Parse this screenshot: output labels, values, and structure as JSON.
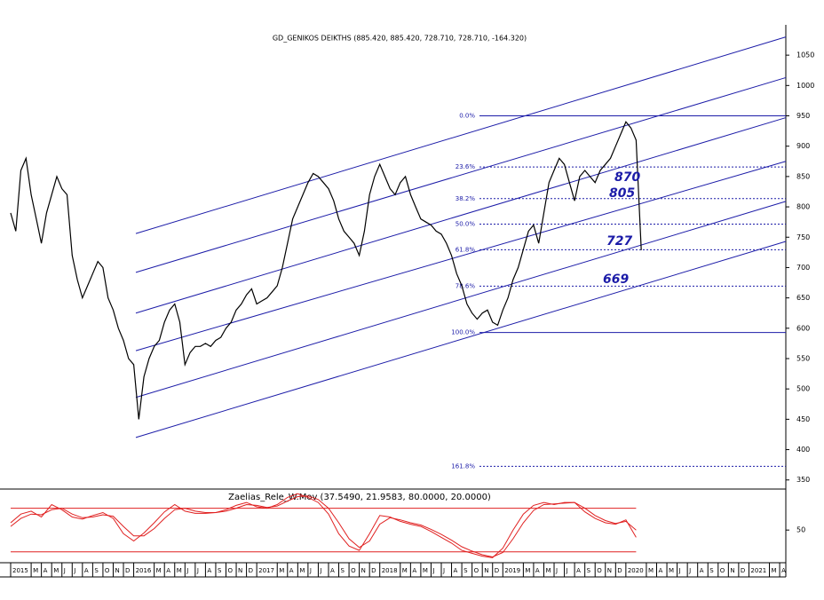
{
  "chart_data": [
    {
      "type": "line",
      "title": "GD_GENIKOS DEIKTHS (885.420, 885.420, 728.710, 728.710, -164.320)",
      "x": [
        0,
        0.5,
        1,
        1.5,
        2,
        2.5,
        3,
        3.5,
        4,
        4.5,
        5,
        5.5,
        6,
        6.5,
        7,
        7.5,
        8,
        8.5,
        9,
        9.5,
        10,
        10.5,
        11,
        11.5,
        12,
        12.5,
        13,
        13.5,
        14,
        14.5,
        15,
        15.5,
        16,
        16.5,
        17,
        17.5,
        18,
        18.5,
        19,
        19.5,
        20,
        20.5,
        21,
        21.5,
        22,
        22.5,
        23,
        23.5,
        24,
        24.5,
        25,
        25.5,
        26,
        26.5,
        27,
        27.5,
        28,
        28.5,
        29,
        29.5,
        30,
        30.5,
        31,
        31.5,
        32,
        32.5,
        33,
        33.5,
        34,
        34.5,
        35,
        35.5,
        36,
        36.5,
        37,
        37.5,
        38,
        38.5,
        39,
        39.5,
        40,
        40.5,
        41,
        41.5,
        42,
        42.5,
        43,
        43.5,
        44,
        44.5,
        45,
        45.5,
        46,
        46.5,
        47,
        47.5,
        48,
        48.5,
        49,
        49.5,
        50,
        50.5,
        51,
        51.5,
        52,
        52.5,
        53,
        53.5,
        54,
        54.5,
        55,
        55.5,
        56,
        56.5,
        57,
        57.5,
        58,
        58.5,
        59,
        59.5,
        60,
        60.5,
        61,
        61.5
      ],
      "series": [
        {
          "color": "#000000",
          "values": [
            790,
            760,
            860,
            880,
            820,
            780,
            740,
            790,
            820,
            850,
            830,
            820,
            720,
            680,
            650,
            670,
            690,
            710,
            700,
            650,
            630,
            600,
            580,
            550,
            540,
            450,
            520,
            550,
            570,
            580,
            610,
            630,
            640,
            610,
            540,
            560,
            570,
            570,
            575,
            570,
            580,
            585,
            600,
            610,
            630,
            640,
            655,
            665,
            640,
            645,
            650,
            660,
            670,
            700,
            740,
            780,
            800,
            820,
            840,
            855,
            850,
            840,
            830,
            810,
            780,
            760,
            750,
            740,
            720,
            760,
            820,
            850,
            870,
            850,
            830,
            820,
            840,
            850,
            820,
            800,
            780,
            775,
            770,
            760,
            755,
            740,
            720,
            690,
            670,
            640,
            625,
            615,
            625,
            630,
            610,
            605,
            630,
            650,
            680,
            700,
            730,
            760,
            770,
            740,
            790,
            840,
            860,
            880,
            870,
            840,
            810,
            850,
            860,
            850,
            840,
            860,
            870,
            880,
            900,
            920,
            940,
            930,
            910,
            728.71
          ]
        }
      ],
      "xlim": [
        0,
        75.6
      ],
      "ylim": [
        335,
        1097
      ],
      "yticks": [
        350,
        400,
        450,
        500,
        550,
        600,
        650,
        700,
        750,
        800,
        850,
        900,
        950,
        1000,
        1050
      ],
      "fib": {
        "values": [
          950,
          865.7,
          813.6,
          771.5,
          729.4,
          669.4,
          593,
          372.4
        ],
        "labels": [
          "0.0%",
          "23.6%",
          "38.2%",
          "50.0%",
          "61.8%",
          "78.6%",
          "100.0%",
          "161.8%"
        ],
        "styles": [
          "solid",
          "dashed",
          "dashed",
          "dashed",
          "dashed",
          "dashed",
          "solid",
          "dashed"
        ],
        "color": "#1c1ca8"
      },
      "channel": {
        "color": "#1c1ca8",
        "lines": [
          [
            420,
            743
          ],
          [
            486,
            809
          ],
          [
            563,
            875
          ],
          [
            625,
            947
          ],
          [
            692,
            1013
          ],
          [
            756,
            1080
          ]
        ]
      },
      "annotations": [
        "870",
        "805",
        "727",
        "669"
      ]
    },
    {
      "type": "oscillator",
      "title": "Zaelias_Rele_W.Mov (37.5490, 21.9583, 80.0000, 20.0000)",
      "x": [
        0,
        1,
        2,
        3,
        4,
        5,
        6,
        7,
        8,
        9,
        10,
        11,
        12,
        13,
        14,
        15,
        16,
        17,
        18,
        19,
        20,
        21,
        22,
        23,
        24,
        25,
        26,
        27,
        28,
        29,
        30,
        31,
        32,
        33,
        34,
        35,
        36,
        37,
        38,
        39,
        40,
        41,
        42,
        43,
        44,
        45,
        46,
        47,
        48,
        49,
        50,
        51,
        52,
        53,
        54,
        55,
        56,
        57,
        58,
        59,
        60,
        61
      ],
      "series": [
        {
          "color": "#e02020",
          "values": [
            60,
            72,
            76,
            68,
            85,
            78,
            68,
            65,
            70,
            74,
            66,
            45,
            35,
            46,
            60,
            75,
            85,
            76,
            73,
            73,
            74,
            78,
            84,
            88,
            82,
            80,
            85,
            95,
            100,
            95,
            88,
            72,
            45,
            28,
            22,
            45,
            70,
            68,
            62,
            58,
            55,
            48,
            40,
            32,
            22,
            18,
            14,
            12,
            25,
            50,
            72,
            84,
            88,
            85,
            88,
            88,
            75,
            66,
            60,
            58,
            64,
            40
          ]
        },
        {
          "color": "#e02020",
          "values": [
            55,
            66,
            72,
            71,
            78,
            80,
            72,
            67,
            68,
            71,
            69,
            55,
            42,
            42,
            52,
            66,
            78,
            80,
            76,
            74,
            74,
            76,
            80,
            85,
            84,
            81,
            83,
            90,
            96,
            97,
            92,
            80,
            60,
            38,
            26,
            35,
            58,
            67,
            64,
            60,
            57,
            51,
            44,
            36,
            27,
            21,
            16,
            13,
            19,
            38,
            60,
            77,
            85,
            86,
            87,
            88,
            80,
            70,
            63,
            59,
            62,
            50
          ]
        }
      ],
      "levels": [
        80,
        20
      ],
      "xlim": [
        0,
        75.6
      ],
      "ylim": [
        5,
        104
      ],
      "yticks": [
        50
      ],
      "xticks": [
        {
          "value": 0,
          "label": "2015"
        },
        {
          "value": 2,
          "label": "M"
        },
        {
          "value": 3,
          "label": "A"
        },
        {
          "value": 4,
          "label": "M"
        },
        {
          "value": 5,
          "label": "J"
        },
        {
          "value": 6,
          "label": "J"
        },
        {
          "value": 7,
          "label": "A"
        },
        {
          "value": 8,
          "label": "S"
        },
        {
          "value": 9,
          "label": "O"
        },
        {
          "value": 10,
          "label": "N"
        },
        {
          "value": 11,
          "label": "D"
        },
        {
          "value": 12,
          "label": "2016"
        },
        {
          "value": 14,
          "label": "M"
        },
        {
          "value": 15,
          "label": "A"
        },
        {
          "value": 16,
          "label": "M"
        },
        {
          "value": 17,
          "label": "J"
        },
        {
          "value": 18,
          "label": "J"
        },
        {
          "value": 19,
          "label": "A"
        },
        {
          "value": 20,
          "label": "S"
        },
        {
          "value": 21,
          "label": "O"
        },
        {
          "value": 22,
          "label": "N"
        },
        {
          "value": 23,
          "label": "D"
        },
        {
          "value": 24,
          "label": "2017"
        },
        {
          "value": 26,
          "label": "M"
        },
        {
          "value": 27,
          "label": "A"
        },
        {
          "value": 28,
          "label": "M"
        },
        {
          "value": 29,
          "label": "J"
        },
        {
          "value": 30,
          "label": "J"
        },
        {
          "value": 31,
          "label": "A"
        },
        {
          "value": 32,
          "label": "S"
        },
        {
          "value": 33,
          "label": "O"
        },
        {
          "value": 34,
          "label": "N"
        },
        {
          "value": 35,
          "label": "D"
        },
        {
          "value": 36,
          "label": "2018"
        },
        {
          "value": 38,
          "label": "M"
        },
        {
          "value": 39,
          "label": "A"
        },
        {
          "value": 40,
          "label": "M"
        },
        {
          "value": 41,
          "label": "J"
        },
        {
          "value": 42,
          "label": "J"
        },
        {
          "value": 43,
          "label": "A"
        },
        {
          "value": 44,
          "label": "S"
        },
        {
          "value": 45,
          "label": "O"
        },
        {
          "value": 46,
          "label": "N"
        },
        {
          "value": 47,
          "label": "D"
        },
        {
          "value": 48,
          "label": "2019"
        },
        {
          "value": 50,
          "label": "M"
        },
        {
          "value": 51,
          "label": "A"
        },
        {
          "value": 52,
          "label": "M"
        },
        {
          "value": 53,
          "label": "J"
        },
        {
          "value": 54,
          "label": "J"
        },
        {
          "value": 55,
          "label": "A"
        },
        {
          "value": 56,
          "label": "S"
        },
        {
          "value": 57,
          "label": "O"
        },
        {
          "value": 58,
          "label": "N"
        },
        {
          "value": 59,
          "label": "D"
        },
        {
          "value": 60,
          "label": "2020"
        },
        {
          "value": 62,
          "label": "M"
        },
        {
          "value": 63,
          "label": "A"
        },
        {
          "value": 64,
          "label": "M"
        },
        {
          "value": 65,
          "label": "J"
        },
        {
          "value": 66,
          "label": "J"
        },
        {
          "value": 67,
          "label": "A"
        },
        {
          "value": 68,
          "label": "S"
        },
        {
          "value": 69,
          "label": "O"
        },
        {
          "value": 70,
          "label": "N"
        },
        {
          "value": 71,
          "label": "D"
        },
        {
          "value": 72,
          "label": "2021"
        },
        {
          "value": 74,
          "label": "M"
        },
        {
          "value": 75,
          "label": "A"
        }
      ]
    }
  ]
}
